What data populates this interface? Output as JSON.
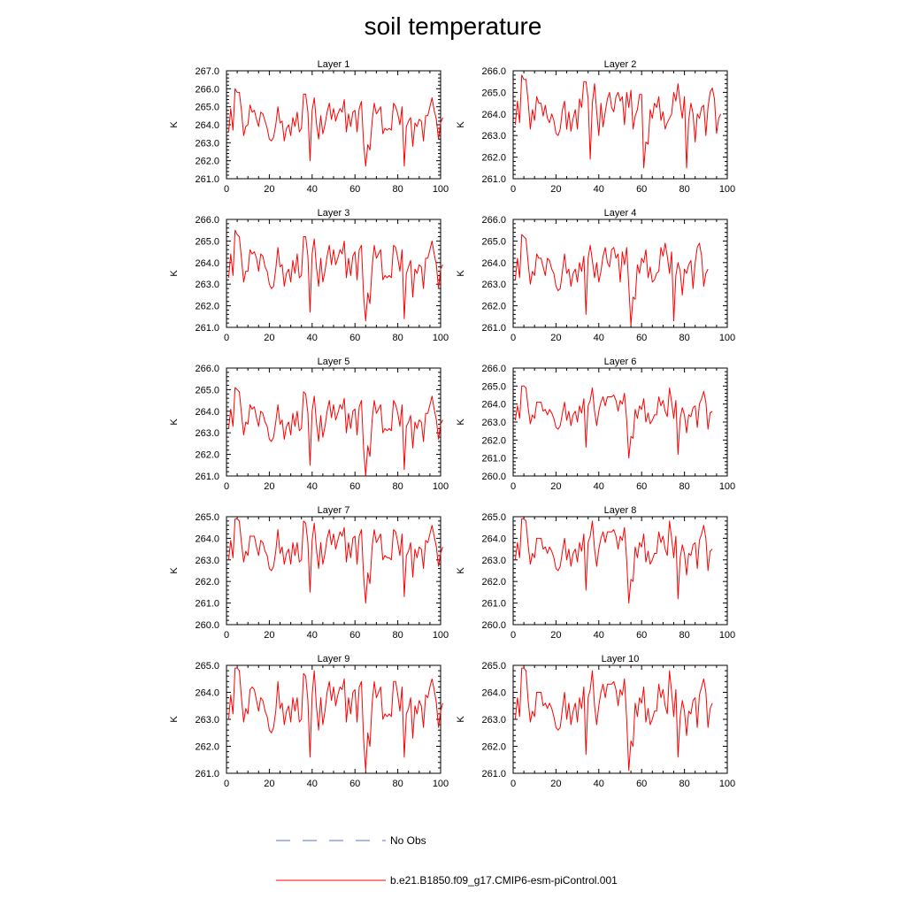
{
  "title": "soil temperature",
  "colors": {
    "series": "#ff0000",
    "obs": "#5a6fd6",
    "axis": "#000000"
  },
  "legend": {
    "obs_label": "No Obs",
    "model_label": "b.e21.B1850.f09_g17.CMIP6-esm-piControl.001"
  },
  "chart_data": [
    {
      "type": "line",
      "title": "Layer 1",
      "ylabel": "K",
      "xlim": [
        0,
        100
      ],
      "ylim": [
        261,
        267
      ],
      "yticks": [
        "261.0",
        "262.0",
        "263.0",
        "264.0",
        "265.0",
        "266.0",
        "267.0"
      ],
      "xticks": [
        "0",
        "20",
        "40",
        "60",
        "80",
        "100"
      ],
      "x_start": 1,
      "values": [
        263.6,
        264.9,
        263.7,
        266.0,
        265.8,
        265.8,
        264.8,
        263.4,
        263.9,
        264.0,
        265.1,
        264.7,
        264.8,
        264.3,
        263.9,
        264.7,
        264.6,
        264.2,
        263.8,
        263.2,
        263.1,
        263.3,
        264.0,
        265.0,
        264.1,
        264.2,
        263.1,
        263.8,
        264.0,
        263.4,
        264.4,
        263.9,
        264.7,
        263.6,
        263.8,
        265.7,
        265.7,
        264.7,
        262.0,
        264.8,
        265.5,
        264.1,
        263.2,
        264.5,
        263.5,
        264.0,
        264.7,
        265.2,
        264.3,
        264.9,
        264.2,
        264.6,
        264.9,
        264.7,
        265.4,
        263.6,
        264.6,
        263.9,
        264.7,
        264.8,
        263.6,
        264.9,
        265.3,
        263.0,
        261.7,
        262.9,
        262.6,
        264.2,
        265.2,
        264.6,
        264.8,
        265.0,
        263.5,
        263.8,
        263.7,
        263.8,
        263.7,
        265.2,
        265.0,
        264.6,
        264.0,
        265.0,
        261.7,
        263.9,
        264.2,
        264.4,
        262.8,
        264.1,
        263.9,
        264.3,
        264.2,
        263.1,
        264.5,
        264.5,
        265.0,
        265.5,
        264.8,
        264.3,
        263.2,
        264.1,
        264.4
      ]
    },
    {
      "type": "line",
      "title": "Layer 2",
      "ylabel": "K",
      "xlim": [
        0,
        100
      ],
      "ylim": [
        261,
        266
      ],
      "yticks": [
        "261.0",
        "262.0",
        "263.0",
        "264.0",
        "265.0",
        "266.0"
      ],
      "xticks": [
        "0",
        "20",
        "40",
        "60",
        "80",
        "100"
      ],
      "x_start": 1,
      "values": [
        263.5,
        264.6,
        263.6,
        265.8,
        265.6,
        265.6,
        264.6,
        263.3,
        264.2,
        263.7,
        264.8,
        264.5,
        264.5,
        263.9,
        264.4,
        263.8,
        263.6,
        264.0,
        263.7,
        263.1,
        263.0,
        263.3,
        264.2,
        264.6,
        263.3,
        264.1,
        263.2,
        263.8,
        264.2,
        263.3,
        264.7,
        264.3,
        265.5,
        265.5,
        264.7,
        261.9,
        264.5,
        265.4,
        264.1,
        263.0,
        264.5,
        263.4,
        264.1,
        264.7,
        265.0,
        264.3,
        264.1,
        264.8,
        265.0,
        264.6,
        264.8,
        263.5,
        265.0,
        264.3,
        265.1,
        263.3,
        263.9,
        264.2,
        264.9,
        264.9,
        261.5,
        262.7,
        262.6,
        264.2,
        263.8,
        264.5,
        264.3,
        264.8,
        263.7,
        264.1,
        263.3,
        263.6,
        263.8,
        264.0,
        265.0,
        264.6,
        265.4,
        264.5,
        263.8,
        264.8,
        261.5,
        263.7,
        264.5,
        264.0,
        262.7,
        264.0,
        263.8,
        264.3,
        264.4,
        263.0,
        264.3,
        265.0,
        265.2,
        264.7,
        263.1,
        263.8,
        264.0
      ]
    },
    {
      "type": "line",
      "title": "Layer 3",
      "ylabel": "K",
      "xlim": [
        0,
        100
      ],
      "ylim": [
        261,
        266
      ],
      "yticks": [
        "261.0",
        "262.0",
        "263.0",
        "264.0",
        "265.0",
        "266.0"
      ],
      "xticks": [
        "0",
        "20",
        "40",
        "60",
        "80",
        "100"
      ],
      "x_start": 1,
      "values": [
        263.3,
        264.4,
        263.4,
        265.5,
        265.3,
        265.2,
        264.2,
        263.1,
        263.6,
        263.6,
        264.6,
        264.4,
        264.5,
        264.2,
        263.6,
        264.4,
        264.3,
        263.8,
        263.6,
        263.0,
        262.8,
        262.9,
        263.7,
        264.7,
        263.8,
        263.9,
        262.9,
        263.5,
        263.7,
        263.1,
        264.1,
        263.5,
        264.4,
        263.3,
        263.4,
        265.2,
        265.2,
        264.3,
        261.7,
        264.4,
        265.1,
        263.8,
        262.9,
        264.2,
        263.1,
        263.6,
        264.3,
        264.8,
        263.9,
        264.6,
        263.9,
        264.2,
        264.6,
        264.4,
        265.0,
        263.3,
        264.2,
        263.4,
        264.3,
        264.5,
        263.2,
        264.6,
        264.8,
        262.5,
        261.3,
        262.6,
        262.1,
        263.8,
        264.8,
        264.2,
        264.4,
        264.6,
        263.2,
        263.4,
        263.3,
        263.4,
        263.3,
        264.8,
        264.7,
        264.2,
        263.6,
        264.6,
        261.4,
        263.5,
        263.8,
        264.1,
        262.4,
        263.7,
        263.5,
        263.9,
        263.8,
        262.8,
        264.2,
        264.2,
        264.6,
        265.0,
        264.4,
        263.9,
        262.8,
        263.7,
        263.9
      ]
    },
    {
      "type": "line",
      "title": "Layer 4",
      "ylabel": "K",
      "xlim": [
        0,
        100
      ],
      "ylim": [
        261,
        266
      ],
      "yticks": [
        "261.0",
        "262.0",
        "263.0",
        "264.0",
        "265.0",
        "266.0"
      ],
      "xticks": [
        "0",
        "20",
        "40",
        "60",
        "80",
        "100"
      ],
      "x_start": 1,
      "values": [
        263.2,
        264.2,
        263.3,
        265.3,
        265.2,
        265.1,
        264.0,
        263.0,
        263.6,
        263.4,
        264.4,
        264.2,
        264.2,
        263.8,
        263.4,
        264.2,
        264.1,
        263.7,
        263.5,
        262.9,
        262.7,
        262.8,
        263.6,
        264.4,
        263.5,
        263.7,
        262.9,
        263.5,
        263.7,
        263.1,
        264.0,
        263.6,
        264.3,
        261.6,
        264.2,
        264.8,
        264.1,
        263.3,
        264.0,
        263.1,
        263.6,
        264.3,
        264.7,
        264.0,
        263.8,
        264.6,
        264.7,
        264.2,
        264.4,
        263.1,
        264.5,
        263.9,
        264.7,
        262.9,
        261.1,
        262.4,
        262.3,
        263.9,
        263.5,
        264.2,
        264.0,
        264.6,
        263.3,
        263.8,
        263.1,
        263.2,
        263.5,
        263.6,
        264.7,
        264.3,
        264.9,
        264.3,
        263.5,
        264.5,
        261.3,
        263.4,
        264.0,
        263.6,
        262.5,
        263.7,
        263.5,
        263.9,
        264.1,
        262.8,
        264.0,
        264.7,
        264.9,
        264.3,
        262.9,
        263.5,
        263.7
      ]
    },
    {
      "type": "line",
      "title": "Layer 5",
      "ylabel": "K",
      "xlim": [
        0,
        100
      ],
      "ylim": [
        261,
        266
      ],
      "yticks": [
        "261.0",
        "262.0",
        "263.0",
        "264.0",
        "265.0",
        "266.0"
      ],
      "xticks": [
        "0",
        "20",
        "40",
        "60",
        "80",
        "100"
      ],
      "x_start": 1,
      "values": [
        263.2,
        264.1,
        263.3,
        265.1,
        265.0,
        264.9,
        263.9,
        262.9,
        263.5,
        263.4,
        264.3,
        264.1,
        264.2,
        263.7,
        263.3,
        264.0,
        263.9,
        263.5,
        263.3,
        262.7,
        262.6,
        262.8,
        263.5,
        264.3,
        263.4,
        263.6,
        262.7,
        263.3,
        263.5,
        262.9,
        263.9,
        263.3,
        264.0,
        263.1,
        263.2,
        264.9,
        264.8,
        263.9,
        261.5,
        264.0,
        264.7,
        263.5,
        262.6,
        263.8,
        262.8,
        263.3,
        264.0,
        264.5,
        263.7,
        264.3,
        263.6,
        263.9,
        264.3,
        264.1,
        264.6,
        263.0,
        263.9,
        263.2,
        264.0,
        264.1,
        262.9,
        264.2,
        264.5,
        262.3,
        261.0,
        262.4,
        261.9,
        263.6,
        264.5,
        263.9,
        264.1,
        264.3,
        263.0,
        263.2,
        263.1,
        263.2,
        263.1,
        264.5,
        264.3,
        263.9,
        263.3,
        264.3,
        261.3,
        263.3,
        263.5,
        263.8,
        262.3,
        263.5,
        263.2,
        263.6,
        263.5,
        262.6,
        263.9,
        263.9,
        264.3,
        264.7,
        264.1,
        263.6,
        262.7,
        263.4,
        263.6
      ]
    },
    {
      "type": "line",
      "title": "Layer 6",
      "ylabel": "K",
      "xlim": [
        0,
        100
      ],
      "ylim": [
        260,
        266
      ],
      "yticks": [
        "260.0",
        "261.0",
        "262.0",
        "263.0",
        "264.0",
        "265.0",
        "266.0"
      ],
      "xticks": [
        "0",
        "20",
        "40",
        "60",
        "80",
        "100"
      ],
      "x_start": 1,
      "values": [
        263.1,
        263.9,
        263.2,
        265.0,
        265.0,
        264.9,
        263.8,
        262.9,
        263.4,
        263.2,
        264.1,
        264.1,
        264.1,
        263.6,
        263.7,
        263.4,
        263.7,
        263.5,
        263.2,
        262.7,
        262.6,
        262.8,
        263.5,
        264.1,
        263.1,
        263.6,
        262.8,
        263.4,
        263.6,
        263.0,
        263.9,
        263.5,
        264.3,
        261.6,
        263.9,
        264.2,
        264.9,
        263.6,
        262.8,
        263.6,
        264.1,
        264.4,
        263.9,
        264.4,
        264.4,
        264.4,
        264.5,
        264.2,
        263.6,
        264.2,
        264.0,
        264.6,
        263.1,
        261.0,
        262.2,
        262.1,
        263.7,
        263.2,
        263.9,
        263.7,
        264.3,
        263.0,
        263.5,
        262.9,
        263.1,
        263.4,
        263.4,
        264.4,
        263.9,
        264.2,
        263.6,
        263.3,
        264.9,
        264.1,
        263.2,
        264.2,
        261.2,
        263.2,
        263.8,
        263.4,
        262.4,
        263.4,
        263.3,
        263.8,
        263.9,
        262.7,
        264.0,
        264.3,
        264.7,
        264.1,
        262.6,
        263.5,
        263.6
      ]
    },
    {
      "type": "line",
      "title": "Layer 7",
      "ylabel": "K",
      "xlim": [
        0,
        100
      ],
      "ylim": [
        260,
        265
      ],
      "yticks": [
        "260.0",
        "261.0",
        "262.0",
        "263.0",
        "264.0",
        "265.0"
      ],
      "xticks": [
        "0",
        "20",
        "40",
        "60",
        "80",
        "100"
      ],
      "x_start": 1,
      "values": [
        263.0,
        263.9,
        263.1,
        264.9,
        264.9,
        264.8,
        263.8,
        262.9,
        263.4,
        263.2,
        264.1,
        264.1,
        264.1,
        263.6,
        263.2,
        263.9,
        263.8,
        263.4,
        263.2,
        262.6,
        262.5,
        262.7,
        263.4,
        264.4,
        263.3,
        263.6,
        262.8,
        263.3,
        263.5,
        262.8,
        263.8,
        263.2,
        263.8,
        262.9,
        263.0,
        264.8,
        264.7,
        263.8,
        261.5,
        263.9,
        264.7,
        263.5,
        262.6,
        263.8,
        262.8,
        263.3,
        264.0,
        264.4,
        263.7,
        264.2,
        263.5,
        263.9,
        264.3,
        264.1,
        264.5,
        262.9,
        263.8,
        263.1,
        264.0,
        264.1,
        262.8,
        264.1,
        264.4,
        262.3,
        261.0,
        262.4,
        261.9,
        263.6,
        264.4,
        263.8,
        264.0,
        264.2,
        263.0,
        263.2,
        263.1,
        263.1,
        263.0,
        264.4,
        264.3,
        263.8,
        263.2,
        264.2,
        261.3,
        263.2,
        263.4,
        263.8,
        262.2,
        263.5,
        263.1,
        263.6,
        263.5,
        262.6,
        263.9,
        263.8,
        264.2,
        264.6,
        264.1,
        263.6,
        262.7,
        263.3,
        263.6
      ]
    },
    {
      "type": "line",
      "title": "Layer 8",
      "ylabel": "K",
      "xlim": [
        0,
        100
      ],
      "ylim": [
        260,
        265
      ],
      "yticks": [
        "260.0",
        "261.0",
        "262.0",
        "263.0",
        "264.0",
        "265.0"
      ],
      "xticks": [
        "0",
        "20",
        "40",
        "60",
        "80",
        "100"
      ],
      "x_start": 1,
      "values": [
        263.0,
        263.8,
        263.1,
        264.9,
        264.9,
        264.8,
        263.7,
        262.8,
        263.3,
        263.1,
        264.0,
        264.0,
        264.0,
        263.5,
        263.6,
        263.3,
        263.6,
        263.4,
        263.1,
        262.6,
        262.5,
        262.7,
        263.4,
        264.0,
        263.0,
        263.5,
        262.7,
        263.3,
        263.5,
        262.9,
        263.8,
        263.4,
        264.2,
        261.6,
        263.8,
        264.1,
        264.8,
        263.5,
        262.7,
        263.5,
        264.0,
        264.3,
        263.8,
        264.3,
        264.3,
        264.3,
        264.4,
        264.1,
        263.5,
        264.1,
        263.9,
        264.5,
        263.0,
        261.0,
        262.1,
        262.0,
        263.6,
        263.1,
        263.8,
        263.6,
        264.2,
        262.9,
        263.4,
        262.8,
        263.0,
        263.3,
        263.3,
        264.3,
        263.8,
        264.1,
        263.5,
        263.2,
        264.8,
        264.0,
        263.1,
        264.1,
        261.2,
        263.1,
        263.7,
        263.3,
        262.3,
        263.3,
        263.2,
        263.7,
        263.8,
        262.6,
        263.9,
        264.2,
        264.6,
        264.0,
        262.5,
        263.4,
        263.5
      ]
    },
    {
      "type": "line",
      "title": "Layer 9",
      "ylabel": "K",
      "xlim": [
        0,
        100
      ],
      "ylim": [
        261,
        265
      ],
      "yticks": [
        "261.0",
        "262.0",
        "263.0",
        "264.0",
        "265.0"
      ],
      "xticks": [
        "0",
        "20",
        "40",
        "60",
        "80",
        "100"
      ],
      "x_start": 1,
      "values": [
        263.0,
        263.9,
        263.2,
        264.9,
        264.9,
        264.8,
        263.8,
        262.9,
        263.4,
        263.2,
        264.1,
        264.2,
        264.1,
        263.7,
        263.3,
        263.8,
        263.7,
        263.3,
        263.1,
        262.6,
        262.5,
        262.7,
        263.3,
        264.4,
        263.4,
        263.6,
        262.8,
        263.3,
        263.5,
        262.9,
        263.8,
        263.3,
        263.8,
        262.9,
        263.0,
        264.7,
        264.6,
        263.7,
        261.6,
        263.9,
        264.8,
        263.5,
        262.6,
        263.8,
        262.8,
        263.3,
        264.0,
        264.4,
        263.7,
        264.2,
        263.5,
        263.9,
        264.2,
        264.1,
        264.5,
        262.9,
        263.8,
        263.2,
        264.0,
        264.1,
        262.9,
        264.2,
        264.4,
        262.3,
        261.1,
        262.5,
        262.0,
        263.6,
        264.4,
        263.8,
        264.0,
        264.2,
        263.0,
        263.2,
        263.1,
        263.2,
        263.1,
        264.4,
        264.4,
        263.9,
        263.3,
        264.2,
        261.6,
        263.2,
        263.4,
        263.8,
        262.3,
        263.5,
        263.2,
        263.7,
        263.5,
        262.7,
        263.9,
        263.8,
        264.2,
        264.5,
        264.1,
        263.6,
        262.7,
        263.3,
        263.6
      ]
    },
    {
      "type": "line",
      "title": "Layer 10",
      "ylabel": "K",
      "xlim": [
        0,
        100
      ],
      "ylim": [
        261,
        265
      ],
      "yticks": [
        "261.0",
        "262.0",
        "263.0",
        "264.0",
        "265.0"
      ],
      "xticks": [
        "0",
        "20",
        "40",
        "60",
        "80",
        "100"
      ],
      "x_start": 1,
      "values": [
        263.0,
        263.8,
        263.1,
        264.9,
        264.9,
        264.8,
        263.7,
        262.9,
        263.3,
        263.1,
        264.0,
        264.0,
        264.0,
        263.5,
        263.6,
        263.4,
        263.6,
        263.4,
        263.1,
        262.7,
        262.6,
        262.7,
        263.4,
        264.0,
        263.0,
        263.6,
        262.8,
        263.3,
        263.6,
        262.9,
        263.8,
        263.4,
        264.2,
        261.7,
        263.8,
        264.1,
        264.8,
        263.5,
        262.8,
        263.5,
        264.0,
        264.3,
        263.8,
        264.3,
        264.3,
        264.3,
        264.4,
        264.1,
        263.5,
        264.1,
        263.9,
        264.5,
        263.0,
        261.1,
        262.2,
        262.0,
        263.6,
        263.1,
        263.8,
        263.6,
        264.2,
        262.9,
        263.4,
        262.8,
        263.0,
        263.3,
        263.3,
        264.3,
        263.8,
        264.1,
        263.5,
        263.2,
        264.8,
        264.0,
        263.1,
        264.1,
        261.6,
        263.1,
        263.7,
        263.3,
        262.4,
        263.3,
        263.2,
        263.7,
        263.8,
        262.7,
        263.9,
        264.2,
        264.5,
        264.0,
        262.7,
        263.4,
        263.6
      ]
    }
  ]
}
